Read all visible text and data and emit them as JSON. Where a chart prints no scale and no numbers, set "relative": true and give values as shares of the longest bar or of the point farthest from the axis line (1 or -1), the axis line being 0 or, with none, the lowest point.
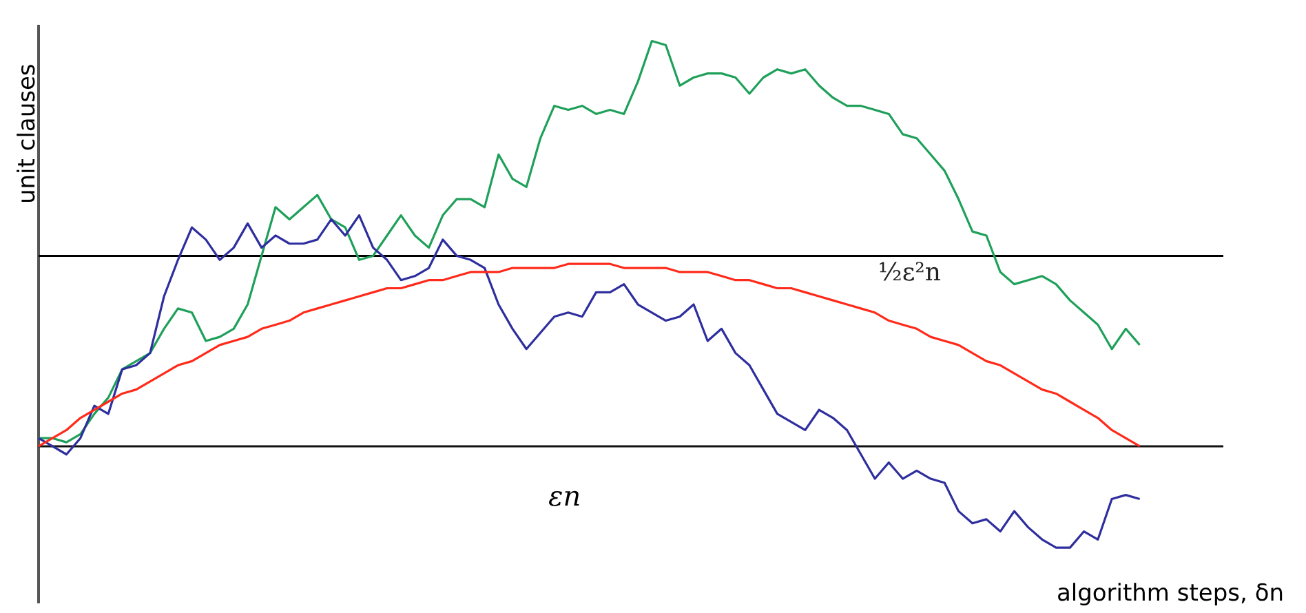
{
  "chart_data": {
    "type": "line",
    "relative": true,
    "ylabel": "unit clauses",
    "xlabel": "algorithm steps, δn",
    "annotations": [
      "εn"
    ],
    "categories": [
      null,
      null,
      null,
      null,
      null,
      null,
      null,
      null,
      null,
      null,
      null,
      null,
      null,
      null,
      null,
      null,
      null,
      null,
      null,
      null,
      null,
      null,
      null,
      null,
      null,
      null,
      null,
      null,
      null,
      null,
      null,
      null,
      null,
      null,
      null,
      null,
      null,
      null,
      null,
      null,
      null,
      null,
      null,
      null,
      null,
      null,
      null,
      null,
      null,
      null,
      null,
      null,
      null,
      null,
      null,
      null,
      null,
      null,
      null,
      null,
      null,
      null,
      null,
      null,
      null,
      null,
      null,
      null,
      null,
      null,
      null,
      null,
      null,
      null,
      null,
      null,
      null,
      null,
      null,
      null,
      null,
      null,
      null,
      null,
      null,
      null
    ],
    "ref_lines": [
      {
        "axis": "y",
        "value": 0.47,
        "label": "½ε²n",
        "color": "#000000"
      }
    ],
    "series": [
      {
        "color": "#1fa05a",
        "values": [
          0.02,
          0.02,
          0.01,
          0.03,
          0.08,
          0.12,
          0.19,
          0.21,
          0.23,
          0.29,
          0.34,
          0.33,
          0.26,
          0.27,
          0.29,
          0.35,
          0.47,
          0.59,
          0.56,
          0.59,
          0.62,
          0.56,
          0.54,
          0.46,
          0.47,
          0.52,
          0.57,
          0.52,
          0.49,
          0.57,
          0.61,
          0.61,
          0.59,
          0.72,
          0.66,
          0.64,
          0.76,
          0.84,
          0.83,
          0.84,
          0.82,
          0.83,
          0.82,
          0.9,
          1,
          0.99,
          0.89,
          0.91,
          0.92,
          0.92,
          0.91,
          0.87,
          0.91,
          0.93,
          0.92,
          0.93,
          0.89,
          0.86,
          0.84,
          0.84,
          0.83,
          0.82,
          0.77,
          0.76,
          0.72,
          0.68,
          0.61,
          0.53,
          0.52,
          0.43,
          0.4,
          0.41,
          0.42,
          0.4,
          0.36,
          0.33,
          0.3,
          0.24,
          0.29,
          0.25,
          null,
          null,
          null,
          null,
          null,
          null
        ]
      },
      {
        "color": "#2e2e9e",
        "values": [
          0.02,
          0,
          -0.02,
          0.02,
          0.1,
          0.08,
          0.19,
          0.2,
          0.23,
          0.37,
          0.46,
          0.54,
          0.51,
          0.46,
          0.49,
          0.55,
          0.49,
          0.52,
          0.5,
          0.5,
          0.51,
          0.56,
          0.52,
          0.57,
          0.49,
          0.46,
          0.41,
          0.42,
          0.44,
          0.51,
          0.47,
          0.46,
          0.44,
          0.35,
          0.29,
          0.24,
          0.28,
          0.32,
          0.33,
          0.32,
          0.38,
          0.38,
          0.4,
          0.35,
          0.33,
          0.31,
          0.32,
          0.35,
          0.26,
          0.29,
          0.23,
          0.2,
          0.14,
          0.08,
          0.06,
          0.04,
          0.09,
          0.07,
          0.04,
          -0.02,
          -0.08,
          -0.04,
          -0.08,
          -0.06,
          -0.08,
          -0.09,
          -0.16,
          -0.19,
          -0.18,
          -0.21,
          -0.16,
          -0.2,
          -0.23,
          -0.25,
          -0.25,
          -0.21,
          -0.23,
          -0.13,
          -0.12,
          -0.13,
          null,
          null,
          null,
          null,
          null,
          null
        ]
      },
      {
        "color": "#ff2a1a",
        "values": [
          0,
          0.02,
          0.04,
          0.07,
          0.09,
          0.11,
          0.13,
          0.14,
          0.16,
          0.18,
          0.2,
          0.21,
          0.23,
          0.25,
          0.26,
          0.27,
          0.29,
          0.3,
          0.31,
          0.33,
          0.34,
          0.35,
          0.36,
          0.37,
          0.38,
          0.39,
          0.39,
          0.4,
          0.41,
          0.41,
          0.42,
          0.43,
          0.43,
          0.43,
          0.44,
          0.44,
          0.44,
          0.44,
          0.45,
          0.45,
          0.45,
          0.45,
          0.44,
          0.44,
          0.44,
          0.44,
          0.43,
          0.43,
          0.43,
          0.42,
          0.41,
          0.41,
          0.4,
          0.39,
          0.39,
          0.38,
          0.37,
          0.36,
          0.35,
          0.34,
          0.33,
          0.31,
          0.3,
          0.29,
          0.27,
          0.26,
          0.25,
          0.23,
          0.21,
          0.2,
          0.18,
          0.16,
          0.14,
          0.13,
          0.11,
          0.09,
          0.07,
          0.04,
          0.02,
          0,
          null,
          null,
          null,
          null,
          null,
          null
        ]
      }
    ]
  }
}
